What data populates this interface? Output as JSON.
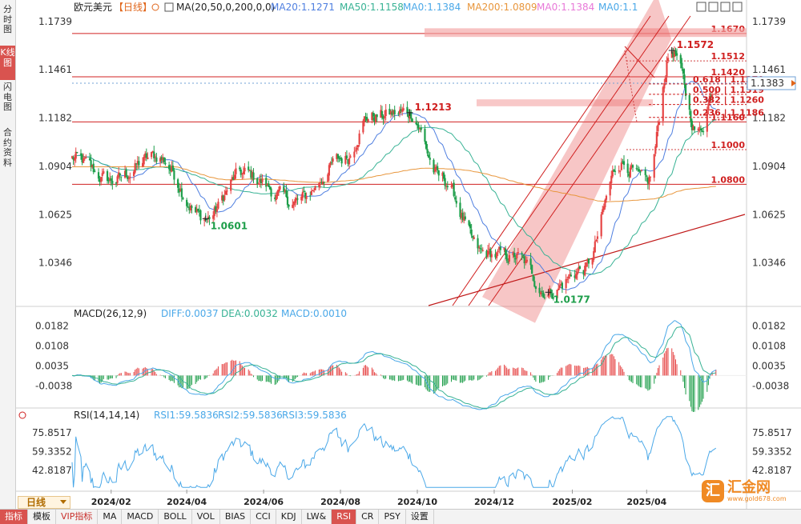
{
  "side_tabs": [
    {
      "label": "分时图",
      "active": false
    },
    {
      "label": "K线图",
      "active": true
    },
    {
      "label": "闪电图",
      "active": false
    },
    {
      "label": "合约资料",
      "active": false
    }
  ],
  "header": {
    "symbol": "欧元美元",
    "period_tag": "【日线】",
    "ma_spec": "MA(20,50,0,200,0,0)",
    "ma_values": [
      {
        "label": "MA20:1.1271",
        "color": "#4f7fe0"
      },
      {
        "label": "MA50:1.1158",
        "color": "#37b294"
      },
      {
        "label": "MA0:1.1384",
        "color": "#4aa8e8"
      },
      {
        "label": "MA200:1.0809",
        "color": "#e8963c"
      },
      {
        "label": "MA0:1.1384",
        "color": "#e879d8"
      },
      {
        "label": "MA0:1.1",
        "color": "#4aa8e8"
      }
    ]
  },
  "toolbar_icons": [
    "expand-icon",
    "shrink-icon",
    "left-arrow-icon",
    "right-arrow-icon"
  ],
  "price_axis": {
    "ticks": [
      "1.1739",
      "1.1461",
      "1.1182",
      "1.0904",
      "1.0625",
      "1.0346"
    ],
    "current": "1.1383"
  },
  "chart_data": [
    {
      "type": "candlestick",
      "panel": "main",
      "title": "欧元美元【日线】",
      "x_ticks": [
        "2024/02",
        "2024/04",
        "2024/06",
        "2024/08",
        "2024/10",
        "2024/12",
        "2025/02",
        "2025/04"
      ],
      "ylim": [
        1.01,
        1.178
      ],
      "anchor_points": [
        {
          "date": "2024-01-01",
          "close": 1.095
        },
        {
          "date": "2024-02-01",
          "close": 1.082
        },
        {
          "date": "2024-03-08",
          "close": 1.096
        },
        {
          "date": "2024-04-16",
          "close": 1.0601
        },
        {
          "date": "2024-05-15",
          "close": 1.086
        },
        {
          "date": "2024-06-26",
          "close": 1.07
        },
        {
          "date": "2024-08-05",
          "close": 1.095
        },
        {
          "date": "2024-08-23",
          "close": 1.119
        },
        {
          "date": "2024-09-25",
          "close": 1.1213
        },
        {
          "date": "2024-10-20",
          "close": 1.083
        },
        {
          "date": "2024-11-22",
          "close": 1.04
        },
        {
          "date": "2024-12-18",
          "close": 1.038
        },
        {
          "date": "2025-01-13",
          "close": 1.0177
        },
        {
          "date": "2025-02-10",
          "close": 1.031
        },
        {
          "date": "2025-03-12",
          "close": 1.093
        },
        {
          "date": "2025-04-01",
          "close": 1.08
        },
        {
          "date": "2025-04-21",
          "close": 1.1572
        },
        {
          "date": "2025-05-12",
          "close": 1.11
        },
        {
          "date": "2025-05-26",
          "close": 1.1383
        }
      ],
      "annotations": [
        {
          "label": "1.0601",
          "date": "2024-04-16",
          "value": 1.0601
        },
        {
          "label": "1.1213",
          "date": "2024-09-25",
          "value": 1.1213
        },
        {
          "label": "1.0177",
          "date": "2025-01-13",
          "value": 1.0177
        },
        {
          "label": "1.1572",
          "date": "2025-04-21",
          "value": 1.1572
        }
      ],
      "hlines": [
        {
          "label": "1.1670",
          "value": 1.167
        },
        {
          "label": "1.1512",
          "value": 1.1512
        },
        {
          "label": "1.1420",
          "value": 1.142
        },
        {
          "label": "1.1160",
          "value": 1.116
        },
        {
          "label": "1.1000",
          "value": 1.1
        },
        {
          "label": "1.0800",
          "value": 1.08
        }
      ],
      "fibonacci": [
        {
          "label": "0.618 | 1.1379",
          "ratio": 0.618,
          "value": 1.1379
        },
        {
          "label": "0.500 | 1.1319",
          "ratio": 0.5,
          "value": 1.1319
        },
        {
          "label": "0.382 | 1.1260",
          "ratio": 0.382,
          "value": 1.126
        },
        {
          "label": "0.236 | 1.1186",
          "ratio": 0.236,
          "value": 1.1186
        }
      ],
      "series": [
        {
          "name": "MA20",
          "value": 1.1271,
          "color": "#4f7fe0"
        },
        {
          "name": "MA50",
          "value": 1.1158,
          "color": "#37b294"
        },
        {
          "name": "MA200",
          "value": 1.0809,
          "color": "#e8963c"
        }
      ],
      "current_price": 1.1383
    },
    {
      "type": "bar",
      "panel": "macd",
      "title": "MACD(26,12,9)",
      "legend": [
        {
          "label": "DIFF:0.0037",
          "color": "#4aa8e8"
        },
        {
          "label": "DEA:0.0032",
          "color": "#37b294"
        },
        {
          "label": "MACD:0.0010",
          "color": "#4aa8e8"
        }
      ],
      "y_ticks": [
        "0.0182",
        "0.0108",
        "0.0035",
        "-0.0038"
      ],
      "ylim": [
        -0.009,
        0.021
      ],
      "diff_last": 0.0037,
      "dea_last": 0.0032,
      "macd_last": 0.001
    },
    {
      "type": "line",
      "panel": "rsi",
      "title": "RSI(14,14,14)",
      "legend": [
        {
          "label": "RSI1:59.5836",
          "color": "#4aa8e8"
        },
        {
          "label": "RSI2:59.5836",
          "color": "#4aa8e8"
        },
        {
          "label": "RSI3:59.5836",
          "color": "#4aa8e8"
        }
      ],
      "y_ticks": [
        "75.8517",
        "59.3352",
        "42.8187"
      ],
      "ylim": [
        26,
        92
      ],
      "last": 59.5836
    }
  ],
  "period_button": "日线",
  "bottom_tabs": [
    {
      "label": "指标",
      "active": true,
      "vip": false
    },
    {
      "label": "模板",
      "active": false,
      "vip": false
    },
    {
      "label": "VIP指标",
      "active": false,
      "vip": true
    },
    {
      "label": "MA",
      "active": false,
      "vip": false
    },
    {
      "label": "MACD",
      "active": false,
      "vip": false
    },
    {
      "label": "BOLL",
      "active": false,
      "vip": false
    },
    {
      "label": "VOL",
      "active": false,
      "vip": false
    },
    {
      "label": "BIAS",
      "active": false,
      "vip": false
    },
    {
      "label": "CCI",
      "active": false,
      "vip": false
    },
    {
      "label": "KDJ",
      "active": false,
      "vip": false
    },
    {
      "label": "LW&",
      "active": false,
      "vip": false
    },
    {
      "label": "RSI",
      "active": true,
      "vip": false
    },
    {
      "label": "CR",
      "active": false,
      "vip": false
    },
    {
      "label": "PSY",
      "active": false,
      "vip": false
    },
    {
      "label": "设置",
      "active": false,
      "vip": false
    }
  ],
  "watermark": {
    "name": "汇金网",
    "url": "www.gold678.com"
  }
}
